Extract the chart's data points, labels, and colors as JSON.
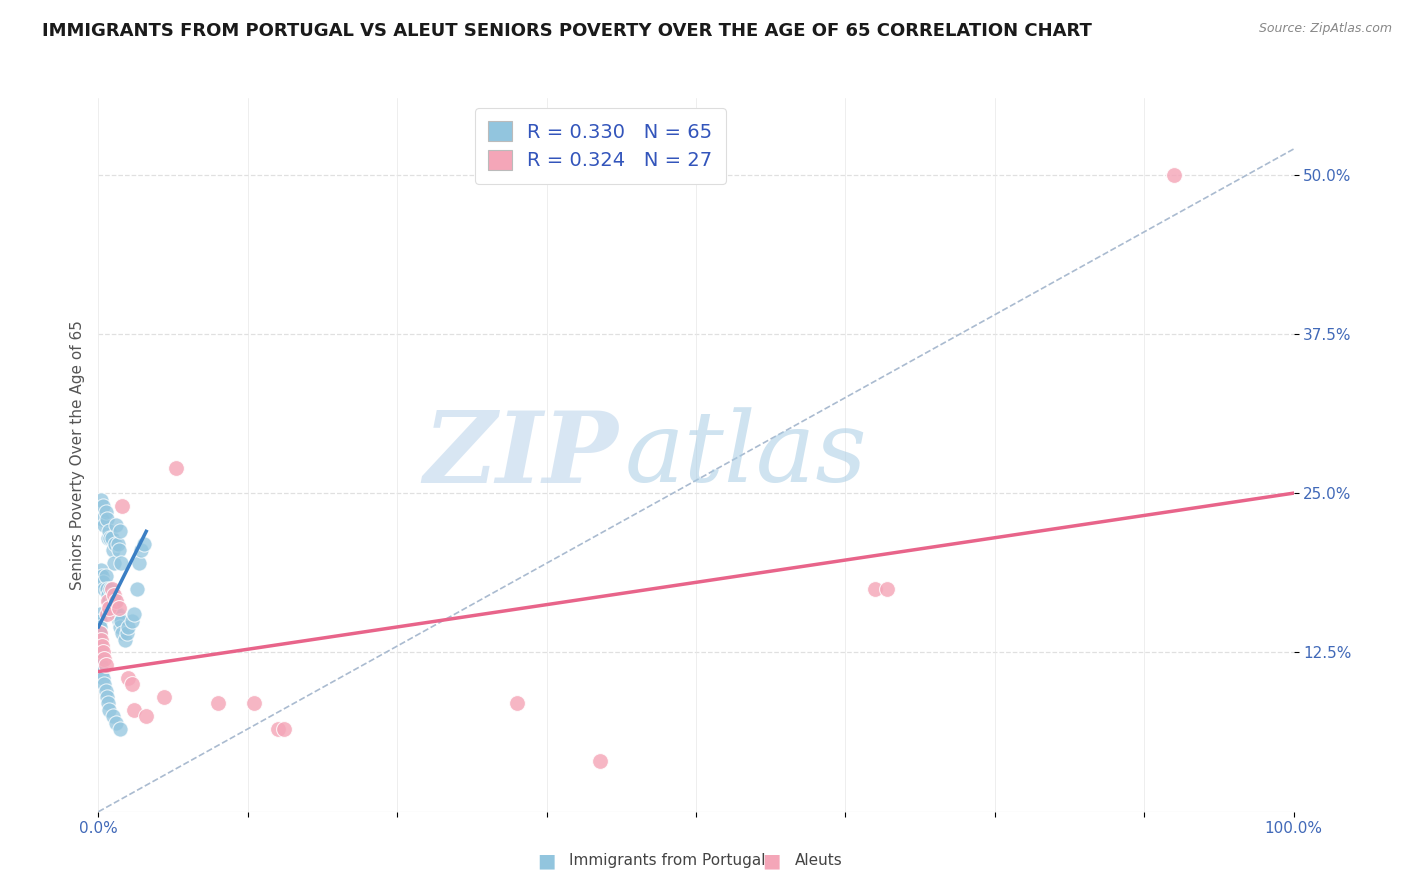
{
  "title": "IMMIGRANTS FROM PORTUGAL VS ALEUT SENIORS POVERTY OVER THE AGE OF 65 CORRELATION CHART",
  "source": "Source: ZipAtlas.com",
  "ylabel": "Seniors Poverty Over the Age of 65",
  "xlim": [
    0,
    1.0
  ],
  "ylim": [
    0.0,
    0.56
  ],
  "ytick_labels_right": [
    "12.5%",
    "25.0%",
    "37.5%",
    "50.0%"
  ],
  "ytick_vals_right": [
    0.125,
    0.25,
    0.375,
    0.5
  ],
  "legend_label1": "Immigrants from Portugal",
  "legend_label2": "Aleuts",
  "blue_color": "#92c5de",
  "pink_color": "#f4a6b8",
  "blue_line_color": "#3b7fc4",
  "pink_line_color": "#e8648a",
  "dashed_line_color": "#aabbd0",
  "blue_scatter": [
    [
      0.002,
      0.245
    ],
    [
      0.003,
      0.23
    ],
    [
      0.004,
      0.24
    ],
    [
      0.005,
      0.225
    ],
    [
      0.006,
      0.235
    ],
    [
      0.007,
      0.23
    ],
    [
      0.008,
      0.215
    ],
    [
      0.009,
      0.22
    ],
    [
      0.01,
      0.215
    ],
    [
      0.011,
      0.215
    ],
    [
      0.012,
      0.205
    ],
    [
      0.013,
      0.195
    ],
    [
      0.014,
      0.21
    ],
    [
      0.015,
      0.225
    ],
    [
      0.016,
      0.21
    ],
    [
      0.017,
      0.205
    ],
    [
      0.018,
      0.22
    ],
    [
      0.019,
      0.195
    ],
    [
      0.002,
      0.19
    ],
    [
      0.003,
      0.185
    ],
    [
      0.004,
      0.18
    ],
    [
      0.005,
      0.175
    ],
    [
      0.006,
      0.185
    ],
    [
      0.007,
      0.175
    ],
    [
      0.008,
      0.17
    ],
    [
      0.009,
      0.165
    ],
    [
      0.01,
      0.175
    ],
    [
      0.011,
      0.17
    ],
    [
      0.012,
      0.165
    ],
    [
      0.013,
      0.16
    ],
    [
      0.014,
      0.165
    ],
    [
      0.015,
      0.155
    ],
    [
      0.016,
      0.155
    ],
    [
      0.017,
      0.15
    ],
    [
      0.018,
      0.145
    ],
    [
      0.019,
      0.15
    ],
    [
      0.02,
      0.14
    ],
    [
      0.022,
      0.135
    ],
    [
      0.024,
      0.14
    ],
    [
      0.025,
      0.145
    ],
    [
      0.028,
      0.15
    ],
    [
      0.03,
      0.155
    ],
    [
      0.032,
      0.175
    ],
    [
      0.034,
      0.195
    ],
    [
      0.036,
      0.205
    ],
    [
      0.038,
      0.21
    ],
    [
      0.001,
      0.155
    ],
    [
      0.001,
      0.15
    ],
    [
      0.001,
      0.145
    ],
    [
      0.001,
      0.14
    ],
    [
      0.001,
      0.135
    ],
    [
      0.001,
      0.13
    ],
    [
      0.001,
      0.125
    ],
    [
      0.001,
      0.12
    ],
    [
      0.002,
      0.115
    ],
    [
      0.003,
      0.11
    ],
    [
      0.004,
      0.105
    ],
    [
      0.005,
      0.1
    ],
    [
      0.006,
      0.095
    ],
    [
      0.007,
      0.09
    ],
    [
      0.008,
      0.085
    ],
    [
      0.009,
      0.08
    ],
    [
      0.012,
      0.075
    ],
    [
      0.015,
      0.07
    ],
    [
      0.018,
      0.065
    ]
  ],
  "pink_scatter": [
    [
      0.001,
      0.14
    ],
    [
      0.002,
      0.135
    ],
    [
      0.003,
      0.13
    ],
    [
      0.004,
      0.125
    ],
    [
      0.005,
      0.12
    ],
    [
      0.006,
      0.115
    ],
    [
      0.007,
      0.155
    ],
    [
      0.008,
      0.165
    ],
    [
      0.009,
      0.16
    ],
    [
      0.011,
      0.175
    ],
    [
      0.013,
      0.17
    ],
    [
      0.015,
      0.165
    ],
    [
      0.017,
      0.16
    ],
    [
      0.02,
      0.24
    ],
    [
      0.025,
      0.105
    ],
    [
      0.028,
      0.1
    ],
    [
      0.03,
      0.08
    ],
    [
      0.04,
      0.075
    ],
    [
      0.055,
      0.09
    ],
    [
      0.065,
      0.27
    ],
    [
      0.1,
      0.085
    ],
    [
      0.13,
      0.085
    ],
    [
      0.15,
      0.065
    ],
    [
      0.155,
      0.065
    ],
    [
      0.35,
      0.085
    ],
    [
      0.42,
      0.04
    ],
    [
      0.65,
      0.175
    ],
    [
      0.66,
      0.175
    ],
    [
      0.9,
      0.5
    ]
  ],
  "blue_trendline": [
    [
      0.0,
      0.145
    ],
    [
      0.04,
      0.22
    ]
  ],
  "pink_trendline": [
    [
      0.0,
      0.11
    ],
    [
      1.0,
      0.25
    ]
  ],
  "dashed_trendline": [
    [
      0.0,
      0.0
    ],
    [
      1.0,
      0.52
    ]
  ],
  "watermark_zip": "ZIP",
  "watermark_atlas": "atlas",
  "background_color": "#ffffff",
  "title_fontsize": 13,
  "axis_label_fontsize": 11,
  "tick_fontsize": 11,
  "right_tick_color": "#4169b8",
  "bottom_tick_color": "#4169b8"
}
